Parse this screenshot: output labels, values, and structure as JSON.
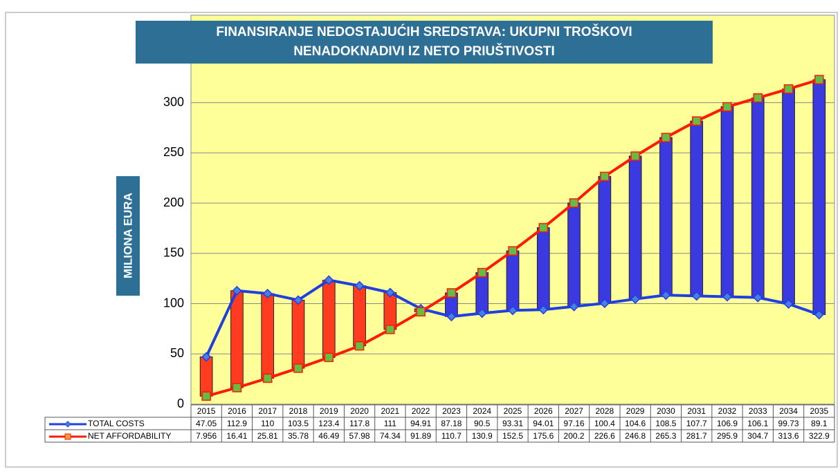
{
  "chart_data": {
    "type": "floating_bar_line",
    "title": "FINANSIRANJE NEDOSTAJUĆIH SREDSTAVA: UKUPNI TROŠKOVI NENADOKNADIVI IZ NETO PRIUŠTIVOSTI",
    "y_label": "MILIONA EURA",
    "categories": [
      "2015",
      "2016",
      "2017",
      "2018",
      "2019",
      "2020",
      "2021",
      "2022",
      "2023",
      "2024",
      "2025",
      "2026",
      "2027",
      "2028",
      "2029",
      "2030",
      "2031",
      "2032",
      "2033",
      "2034",
      "2035"
    ],
    "series": [
      {
        "name": "TOTAL COSTS",
        "color": "#1f3fe0",
        "values": [
          47.05,
          112.9,
          110,
          103.5,
          123.4,
          117.8,
          111,
          94.91,
          87.18,
          90.5,
          93.31,
          94.01,
          97.16,
          100.4,
          104.6,
          108.5,
          107.7,
          106.9,
          106.1,
          99.73,
          89.1
        ]
      },
      {
        "name": "NET AFFORDABILITY",
        "color": "#ff1a00",
        "values": [
          7.956,
          16.41,
          25.81,
          35.78,
          46.49,
          57.98,
          74.34,
          91.89,
          110.7,
          130.9,
          152.5,
          175.6,
          200.2,
          226.6,
          246.8,
          265.3,
          281.7,
          295.9,
          304.7,
          313.6,
          322.9
        ]
      }
    ],
    "deficit_color": "#ff3b20",
    "surplus_color": "#3a3ae0",
    "ylim": [
      0,
      387
    ],
    "yticks": [
      0,
      50,
      100,
      150,
      200,
      250,
      300
    ],
    "grid": true
  }
}
